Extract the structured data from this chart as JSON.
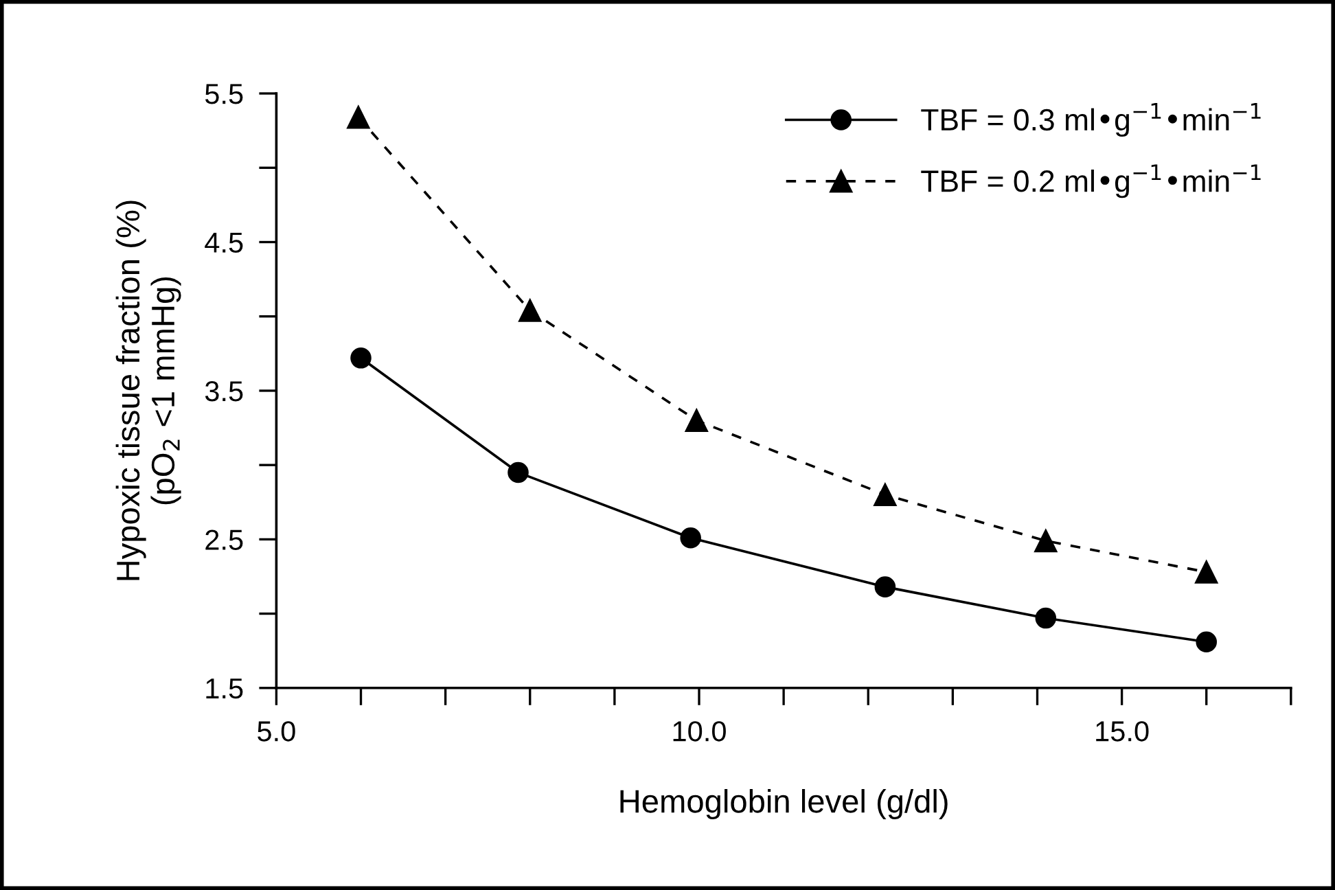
{
  "chart_data": {
    "type": "line",
    "xlabel": "Hemoglobin level (g/dl)",
    "ylabel": "Hypoxic tissue fraction (%)\n(pO$_{2}$ <1 mmHg)",
    "series": [
      {
        "name": "TBF = 0.3 ml•g$^{−1}$•min$^{−1}$",
        "color": "#000000",
        "marker": "circle",
        "line_style": "solid",
        "x": [
          6.0,
          7.86,
          9.9,
          12.2,
          14.1,
          16.0
        ],
        "values": [
          3.72,
          2.95,
          2.51,
          2.18,
          1.97,
          1.81
        ]
      },
      {
        "name": "TBF = 0.2 ml•g$^{−1}$•min$^{−1}$",
        "color": "#000000",
        "marker": "triangle",
        "line_style": "dashed",
        "x": [
          5.97,
          8.0,
          9.97,
          12.2,
          14.1,
          16.0
        ],
        "values": [
          5.34,
          4.04,
          3.3,
          2.8,
          2.49,
          2.28
        ]
      }
    ],
    "xlim": [
      5,
      17
    ],
    "xticks": [
      {
        "value": 5,
        "label": "5.0"
      },
      {
        "value": 6,
        "label": null
      },
      {
        "value": 7,
        "label": null
      },
      {
        "value": 8,
        "label": null
      },
      {
        "value": 9,
        "label": null
      },
      {
        "value": 10,
        "label": "10.0"
      },
      {
        "value": 11,
        "label": null
      },
      {
        "value": 12,
        "label": null
      },
      {
        "value": 13,
        "label": null
      },
      {
        "value": 14,
        "label": null
      },
      {
        "value": 15,
        "label": "15.0"
      },
      {
        "value": 16,
        "label": null
      },
      {
        "value": 17,
        "label": null
      }
    ],
    "ylim": [
      1.5,
      5.5
    ],
    "yticks": [
      1.5,
      {
        "value": 2.0,
        "label": null
      },
      2.5,
      {
        "value": 3.0,
        "label": null
      },
      3.5,
      {
        "value": 4.0,
        "label": null
      },
      4.5,
      {
        "value": 5.0,
        "label": null
      },
      5.5
    ],
    "grid": false,
    "legend": "top right"
  }
}
